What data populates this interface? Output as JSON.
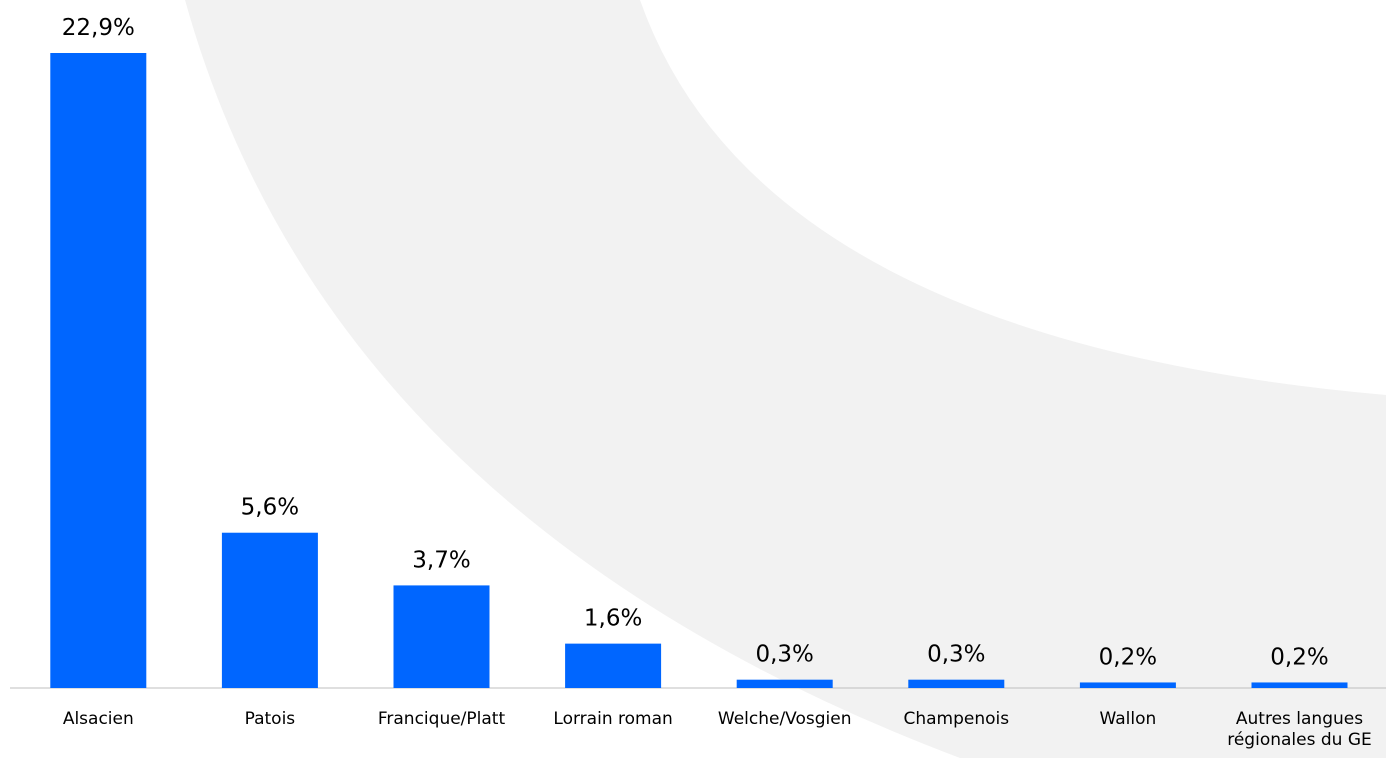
{
  "chart_data": {
    "type": "bar",
    "categories": [
      "Alsacien",
      "Patois",
      "Francique/Platt",
      "Lorrain roman",
      "Welche/Vosgien",
      "Champenois",
      "Wallon",
      "Autres langues régionales du GE"
    ],
    "values": [
      22.9,
      5.6,
      3.7,
      1.6,
      0.3,
      0.3,
      0.2,
      0.2
    ],
    "value_labels": [
      "22,9%",
      "5,6%",
      "3,7%",
      "1,6%",
      "0,3%",
      "0,3%",
      "0,2%",
      "0,2%"
    ],
    "color": "#0066ff"
  }
}
